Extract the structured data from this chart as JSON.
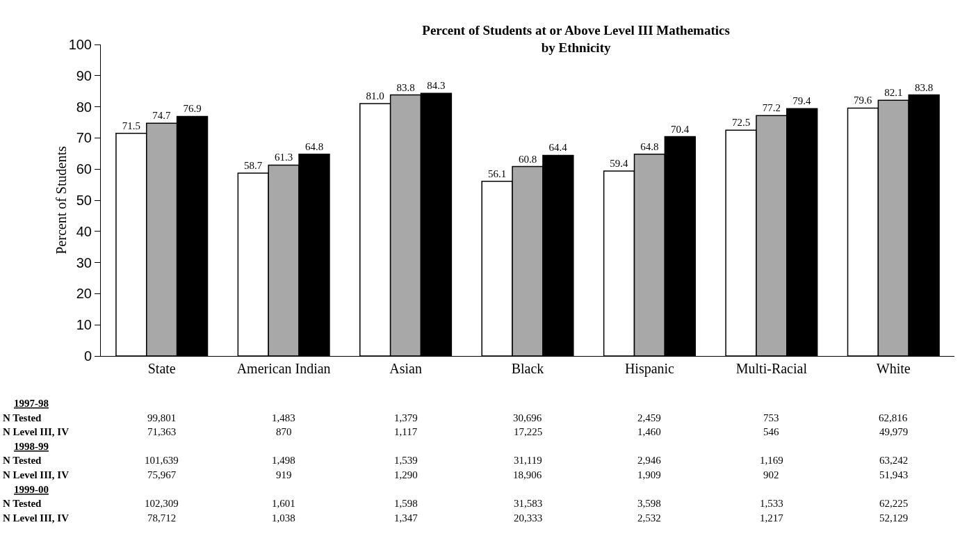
{
  "chart_data": {
    "type": "bar",
    "title": "Percent of Students at or Above Level III Mathematics\nby Ethnicity",
    "ylabel": "Percent of Students",
    "categories": [
      "State",
      "American Indian",
      "Asian",
      "Black",
      "Hispanic",
      "Multi-Racial",
      "White"
    ],
    "series": [
      {
        "color": "#ffffff",
        "values": [
          71.5,
          58.7,
          81.0,
          56.1,
          59.4,
          72.5,
          79.6
        ],
        "value_labels": [
          "71.5",
          "58.7",
          "81.0",
          "56.1",
          "59.4",
          "72.5",
          "79.6"
        ]
      },
      {
        "color": "#a8a8a8",
        "values": [
          74.7,
          61.3,
          83.8,
          60.8,
          64.8,
          77.2,
          82.1
        ],
        "value_labels": [
          "74.7",
          "61.3",
          "83.8",
          "60.8",
          "64.8",
          "77.2",
          "82.1"
        ]
      },
      {
        "color": "#000000",
        "values": [
          76.9,
          64.8,
          84.3,
          64.4,
          70.4,
          79.4,
          83.8
        ],
        "value_labels": [
          "76.9",
          "64.8",
          "84.3",
          "64.4",
          "70.4",
          "79.4",
          "83.8"
        ]
      }
    ],
    "ylim": [
      0,
      100
    ],
    "yticks": [
      0,
      10,
      20,
      30,
      40,
      50,
      60,
      70,
      80,
      90,
      100
    ],
    "grid": false,
    "annotations": [
      "1997-98",
      "N Tested\t99,801\t1,483\t1,379\t30,696\t2,459\t753\t62,816",
      "N Level III, IV\t71,363\t870\t1,117\t17,225\t1,460\t546\t49,979",
      "1998-99",
      "N Tested\t101,639\t1,498\t1,539\t31,119\t2,946\t1,169\t63,242",
      "N Level III, IV\t75,967\t919\t1,290\t18,906\t1,909\t902\t51,943",
      "1999-00",
      "N Tested\t102,309\t1,601\t1,598\t31,583\t3,598\t1,533\t62,225",
      "N Level III, IV\t78,712\t1,038\t1,347\t20,333\t2,532\t1,217\t52,129"
    ]
  }
}
